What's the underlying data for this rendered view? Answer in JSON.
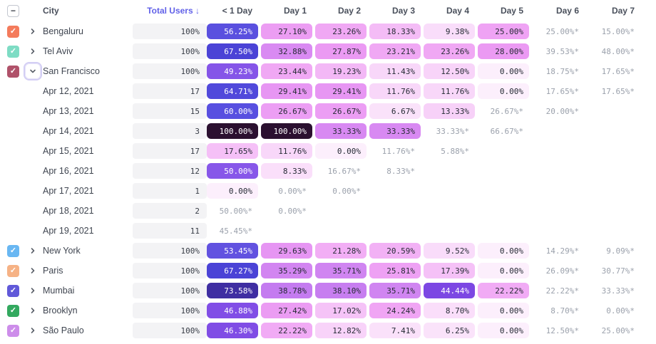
{
  "header": {
    "columns": [
      "City",
      "Total Users ↓",
      "< 1 Day",
      "Day 1",
      "Day 2",
      "Day 3",
      "Day 4",
      "Day 5",
      "Day 6",
      "Day 7"
    ],
    "select_all_state": "indeterminate",
    "sort_accent_color": "#6161E8"
  },
  "colors": {
    "star_text": "#9BA1AC",
    "total_pill_bg": "#F3F3F5",
    "value_dark_text": "#262B35",
    "value_light_text": "#FFFFFF",
    "white_text_threshold": 43,
    "scale": [
      {
        "v": 0,
        "c": "#FCEFFC"
      },
      {
        "v": 8,
        "c": "#FAE0FA"
      },
      {
        "v": 12,
        "c": "#F8D6F9"
      },
      {
        "v": 17,
        "c": "#F5C3F7"
      },
      {
        "v": 21,
        "c": "#F2AFF5"
      },
      {
        "v": 25,
        "c": "#EFA3F4"
      },
      {
        "v": 29,
        "c": "#E997F3"
      },
      {
        "v": 33,
        "c": "#D98AF2"
      },
      {
        "v": 37,
        "c": "#CC82F1"
      },
      {
        "v": 40,
        "c": "#BE76EF"
      },
      {
        "v": 44,
        "c": "#7B46E3"
      },
      {
        "v": 50,
        "c": "#8757E9"
      },
      {
        "v": 54,
        "c": "#5C51DF"
      },
      {
        "v": 62,
        "c": "#564EE0"
      },
      {
        "v": 68,
        "c": "#4A42D5"
      },
      {
        "v": 74,
        "c": "#3E2D9E"
      },
      {
        "v": 85,
        "c": "#321853"
      },
      {
        "v": 100,
        "c": "#2B1030"
      }
    ]
  },
  "rows": [
    {
      "type": "city",
      "label": "Bengaluru",
      "checkbox_color": "#F47B5C",
      "checked": true,
      "expanded": false,
      "total": "100%",
      "cells": [
        "56.25%",
        "27.10%",
        "23.26%",
        "18.33%",
        "9.38%",
        "25.00%",
        "25.00%*",
        "15.00%*"
      ]
    },
    {
      "type": "city",
      "label": "Tel Aviv",
      "checkbox_color": "#7EDCC4",
      "checked": true,
      "expanded": false,
      "total": "100%",
      "cells": [
        "67.50%",
        "32.88%",
        "27.87%",
        "23.21%",
        "23.26%",
        "28.00%",
        "39.53%*",
        "48.00%*"
      ]
    },
    {
      "type": "city",
      "label": "San Francisco",
      "checkbox_color": "#B0526A",
      "checked": true,
      "expanded": true,
      "total": "100%",
      "cells": [
        "49.23%",
        "23.44%",
        "19.23%",
        "11.43%",
        "12.50%",
        "0.00%",
        "18.75%*",
        "17.65%*"
      ]
    },
    {
      "type": "date",
      "label": "Apr 12, 2021",
      "total": "17",
      "cells": [
        "64.71%",
        "29.41%",
        "29.41%",
        "11.76%",
        "11.76%",
        "0.00%",
        "17.65%*",
        "17.65%*"
      ]
    },
    {
      "type": "date",
      "label": "Apr 13, 2021",
      "total": "15",
      "cells": [
        "60.00%",
        "26.67%",
        "26.67%",
        "6.67%",
        "13.33%",
        "26.67%*",
        "20.00%*",
        ""
      ]
    },
    {
      "type": "date",
      "label": "Apr 14, 2021",
      "total": "3",
      "cells": [
        "100.00%",
        "100.00%",
        "33.33%",
        "33.33%",
        "33.33%*",
        "66.67%*",
        "",
        ""
      ]
    },
    {
      "type": "date",
      "label": "Apr 15, 2021",
      "total": "17",
      "cells": [
        "17.65%",
        "11.76%",
        "0.00%",
        "11.76%*",
        "5.88%*",
        "",
        "",
        ""
      ]
    },
    {
      "type": "date",
      "label": "Apr 16, 2021",
      "total": "12",
      "cells": [
        "50.00%",
        "8.33%",
        "16.67%*",
        "8.33%*",
        "",
        "",
        "",
        ""
      ]
    },
    {
      "type": "date",
      "label": "Apr 17, 2021",
      "total": "1",
      "cells": [
        "0.00%",
        "0.00%*",
        "0.00%*",
        "",
        "",
        "",
        "",
        ""
      ]
    },
    {
      "type": "date",
      "label": "Apr 18, 2021",
      "total": "2",
      "cells": [
        "50.00%*",
        "0.00%*",
        "",
        "",
        "",
        "",
        "",
        ""
      ]
    },
    {
      "type": "date",
      "label": "Apr 19, 2021",
      "total": "11",
      "cells": [
        "45.45%*",
        "",
        "",
        "",
        "",
        "",
        "",
        ""
      ]
    },
    {
      "type": "city",
      "label": "New York",
      "checkbox_color": "#69B7F2",
      "checked": true,
      "expanded": false,
      "total": "100%",
      "cells": [
        "53.45%",
        "29.63%",
        "21.28%",
        "20.59%",
        "9.52%",
        "0.00%",
        "14.29%*",
        "9.09%*"
      ]
    },
    {
      "type": "city",
      "label": "Paris",
      "checkbox_color": "#F6B285",
      "checked": true,
      "expanded": false,
      "total": "100%",
      "cells": [
        "67.27%",
        "35.29%",
        "35.71%",
        "25.81%",
        "17.39%",
        "0.00%",
        "26.09%*",
        "30.77%*"
      ]
    },
    {
      "type": "city",
      "label": "Mumbai",
      "checkbox_color": "#6159D9",
      "checked": true,
      "expanded": false,
      "total": "100%",
      "cells": [
        "73.58%",
        "38.78%",
        "38.10%",
        "35.71%",
        "44.44%",
        "22.22%",
        "22.22%*",
        "33.33%*"
      ]
    },
    {
      "type": "city",
      "label": "Brooklyn",
      "checkbox_color": "#33A95F",
      "checked": true,
      "expanded": false,
      "total": "100%",
      "cells": [
        "46.88%",
        "27.42%",
        "17.02%",
        "24.24%",
        "8.70%",
        "0.00%",
        "8.70%*",
        "0.00%*"
      ]
    },
    {
      "type": "city",
      "label": "São Paulo",
      "checkbox_color": "#CD8DEA",
      "checked": true,
      "expanded": false,
      "total": "100%",
      "cells": [
        "46.30%",
        "22.22%",
        "12.82%",
        "7.41%",
        "6.25%",
        "0.00%",
        "12.50%*",
        "25.00%*"
      ]
    }
  ]
}
